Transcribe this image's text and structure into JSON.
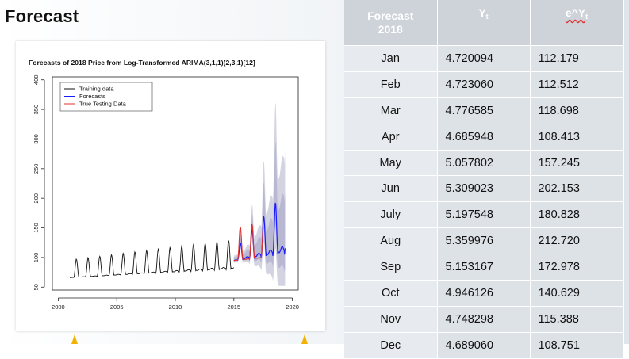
{
  "slide": {
    "title": "Forecast"
  },
  "table": {
    "headers": {
      "month_line1": "Forecast",
      "month_line2": "2018",
      "y_main": "Y",
      "y_sub": "t",
      "ey_caret": "e^Y",
      "ey_sub": "t"
    },
    "rows": [
      {
        "month": "Jan",
        "y": "4.720094",
        "ey": "112.179"
      },
      {
        "month": "Feb",
        "y": "4.723060",
        "ey": "112.512"
      },
      {
        "month": "Mar",
        "y": "4.776585",
        "ey": "118.698"
      },
      {
        "month": "Apr",
        "y": "4.685948",
        "ey": "108.413"
      },
      {
        "month": "May",
        "y": "5.057802",
        "ey": "157.245"
      },
      {
        "month": "Jun",
        "y": "5.309023",
        "ey": "202.153"
      },
      {
        "month": "July",
        "y": "5.197548",
        "ey": "180.828"
      },
      {
        "month": "Aug",
        "y": "5.359976",
        "ey": "212.720"
      },
      {
        "month": "Sep",
        "y": "5.153167",
        "ey": "172.978"
      },
      {
        "month": "Oct",
        "y": "4.946126",
        "ey": "140.629"
      },
      {
        "month": "Nov",
        "y": "4.748298",
        "ey": "115.388"
      },
      {
        "month": "Dec",
        "y": "4.689060",
        "ey": "108.751"
      }
    ]
  },
  "chart_data": {
    "type": "line",
    "title": "Forecasts of 2018 Price from Log-Transformed ARIMA(3,1,1)(2,3,1)[12]",
    "xlabel": "",
    "ylabel": "",
    "xlim": [
      1999.5,
      2020.5
    ],
    "ylim": [
      45,
      405
    ],
    "x_ticks": [
      2000,
      2005,
      2010,
      2015,
      2020
    ],
    "x_tick_labels": [
      "2000",
      "2005",
      "2010",
      "2015",
      "2020"
    ],
    "y_ticks": [
      50,
      100,
      150,
      200,
      250,
      300,
      350,
      400
    ],
    "y_tick_labels": [
      "50",
      "100",
      "150",
      "200",
      "250",
      "300",
      "350",
      "400"
    ],
    "grid": false,
    "legend_position": "top-left",
    "legend": [
      "Training data",
      "Forecasts",
      "True Testing Data"
    ],
    "series": [
      {
        "name": "Training data",
        "color": "#111111",
        "start": 2001.0,
        "end": 2015.0,
        "base_start": 66,
        "base_end": 86,
        "peak_start": 96,
        "peak_end": 130,
        "trough_start": 66,
        "trough_end": 80
      },
      {
        "name": "Forecasts",
        "color": "#1a1aff",
        "start": 2015.0,
        "end": 2019.4,
        "base_start": 95,
        "base_end": 125,
        "peak_start": 112,
        "peak_end": 212,
        "trough_start": 95,
        "trough_end": 105
      },
      {
        "name": "True Testing Data",
        "color": "#e03030",
        "start": 2015.0,
        "end": 2017.5,
        "base_start": 95,
        "base_end": 100,
        "peak_start": 150,
        "peak_end": 160,
        "trough_start": 95,
        "trough_end": 100
      }
    ],
    "interval_colors": {
      "outer": "#d3d3e2",
      "inner": "#b8b8d3"
    },
    "marker_color": "#f2b200"
  }
}
